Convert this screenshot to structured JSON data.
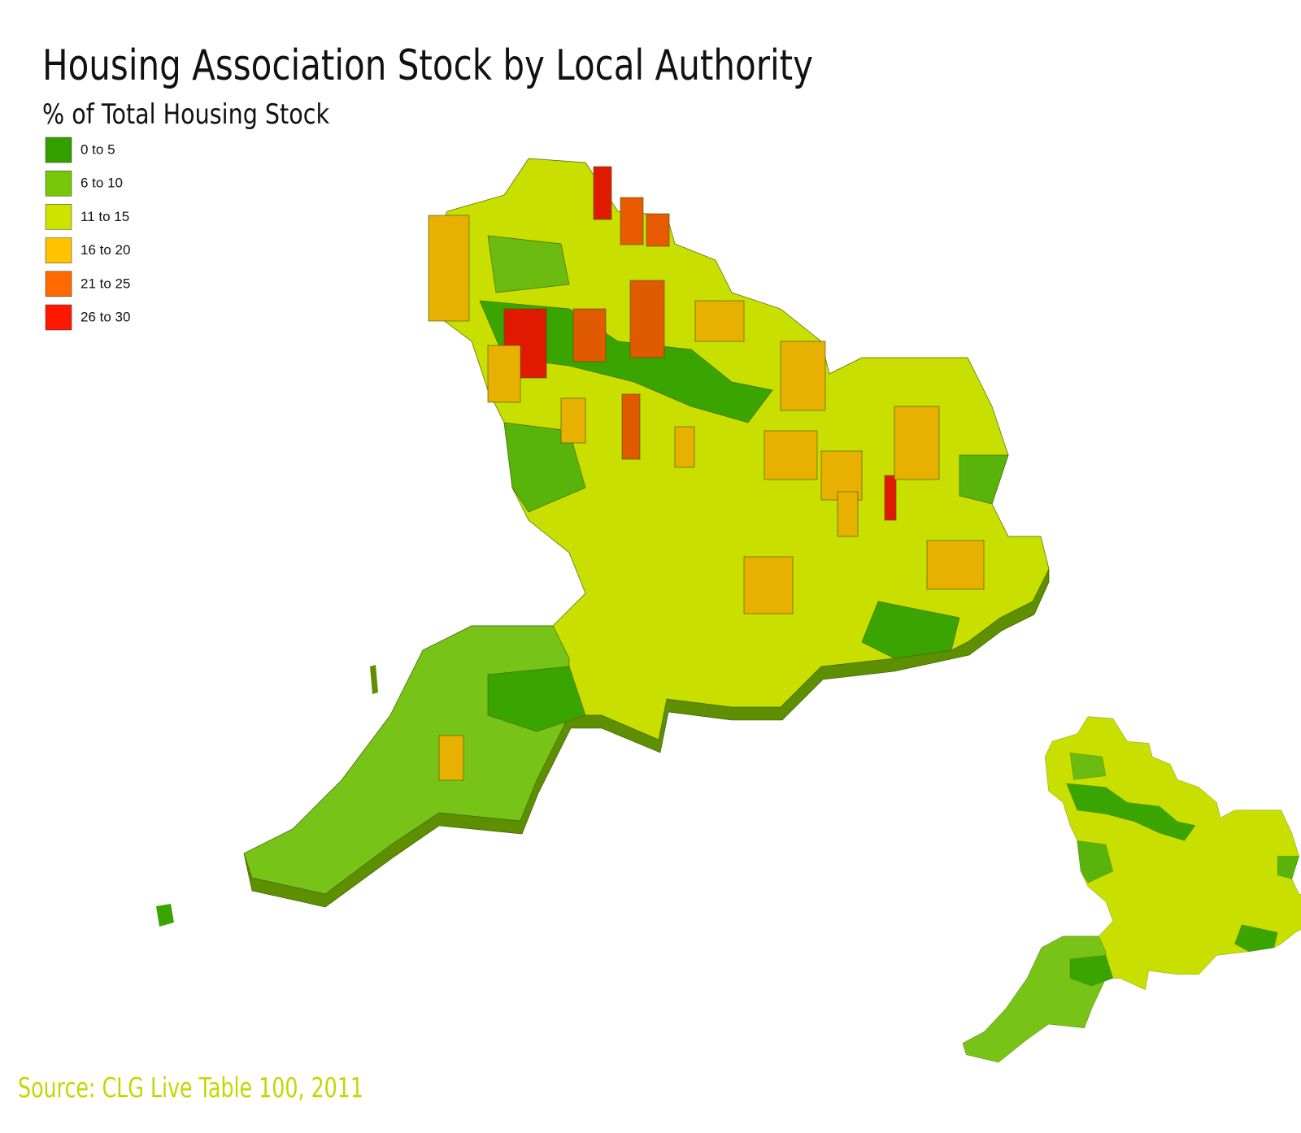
{
  "header": {
    "title": "Housing Association Stock by Local Authority",
    "subtitle": "% of Total Housing Stock"
  },
  "legend": {
    "items": [
      {
        "label": "0 to 5",
        "color": "#33a000"
      },
      {
        "label": "6 to 10",
        "color": "#77c80a"
      },
      {
        "label": "11 to 15",
        "color": "#cce400"
      },
      {
        "label": "16 to 20",
        "color": "#ffc300"
      },
      {
        "label": "21 to 25",
        "color": "#ff6a00"
      },
      {
        "label": "26 to 30",
        "color": "#ff1800"
      }
    ]
  },
  "footer": {
    "source": "Source: CLG Live Table 100, 2011"
  }
}
